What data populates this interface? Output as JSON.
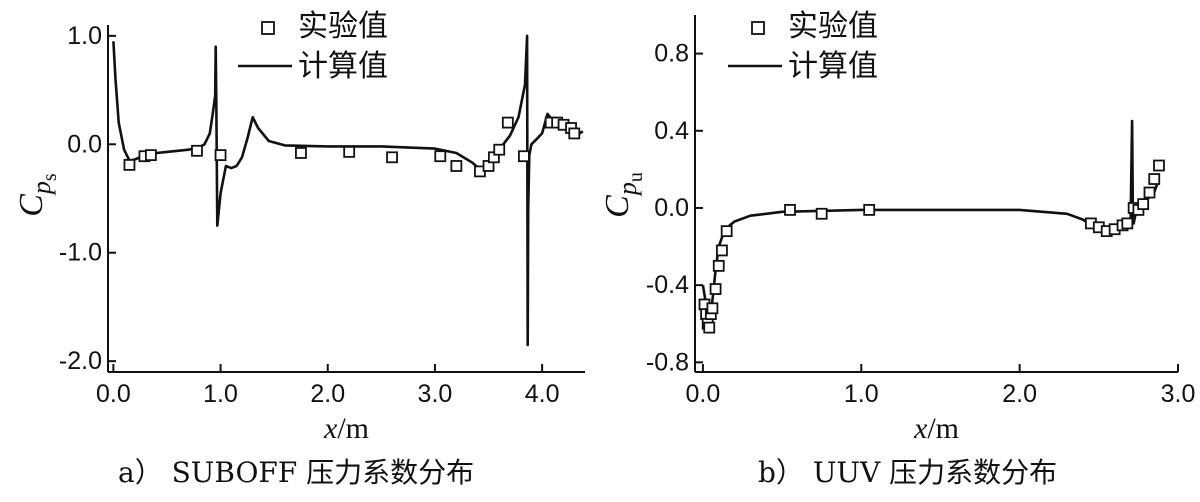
{
  "chart_data": [
    {
      "type": "line",
      "caption": "a） SUBOFF 压力系数分布",
      "ylabel": "Cps",
      "ylabel_symbol": "C",
      "ylabel_sub": "p",
      "ylabel_subsub": "s",
      "xlabel_var": "x",
      "xlabel_sep": "/",
      "xlabel_unit": "m",
      "xlim": [
        -0.05,
        4.4
      ],
      "ylim": [
        -2.1,
        1.1
      ],
      "xticks": [
        "0.0",
        "1.0",
        "2.0",
        "3.0",
        "4.0"
      ],
      "xtick_values": [
        0,
        1,
        2,
        3,
        4
      ],
      "yticks": [
        "1.0",
        "0.0",
        "-1.0",
        "-2.0"
      ],
      "ytick_values": [
        1.0,
        0.0,
        -1.0,
        -2.0
      ],
      "legend": {
        "position": "top-right",
        "markers_label": "实验值",
        "line_label": "计算值"
      },
      "series": [
        {
          "name": "计算值",
          "style": "line",
          "x": [
            0.0,
            0.02,
            0.05,
            0.1,
            0.15,
            0.2,
            0.3,
            0.4,
            0.5,
            0.6,
            0.7,
            0.8,
            0.85,
            0.9,
            0.93,
            0.95,
            0.955,
            0.96,
            0.97,
            1.0,
            1.05,
            1.1,
            1.15,
            1.2,
            1.25,
            1.3,
            1.35,
            1.45,
            1.6,
            2.0,
            2.5,
            3.0,
            3.2,
            3.35,
            3.42,
            3.5,
            3.6,
            3.7,
            3.78,
            3.84,
            3.86,
            3.865,
            3.87,
            3.88,
            3.9,
            3.95,
            4.0,
            4.05,
            4.1,
            4.2,
            4.3,
            4.35,
            4.38
          ],
          "y": [
            0.95,
            0.6,
            0.2,
            -0.05,
            -0.15,
            -0.14,
            -0.1,
            -0.08,
            -0.07,
            -0.06,
            -0.05,
            -0.03,
            0.0,
            0.1,
            0.3,
            0.45,
            0.9,
            0.4,
            -0.75,
            -0.45,
            -0.2,
            -0.22,
            -0.2,
            -0.12,
            0.05,
            0.25,
            0.15,
            0.03,
            -0.01,
            -0.02,
            -0.02,
            -0.04,
            -0.08,
            -0.17,
            -0.23,
            -0.18,
            -0.05,
            0.08,
            0.25,
            0.55,
            1.0,
            -1.85,
            -0.6,
            -0.1,
            0.0,
            0.05,
            0.1,
            0.28,
            0.22,
            0.2,
            0.15,
            0.1,
            0.12
          ]
        },
        {
          "name": "实验值",
          "style": "markers",
          "x": [
            0.15,
            0.29,
            0.35,
            0.78,
            1.0,
            1.75,
            2.2,
            2.6,
            3.05,
            3.2,
            3.42,
            3.5,
            3.55,
            3.6,
            3.68,
            3.83,
            4.08,
            4.14,
            4.2,
            4.27,
            4.3
          ],
          "y": [
            -0.19,
            -0.11,
            -0.1,
            -0.06,
            -0.1,
            -0.08,
            -0.07,
            -0.12,
            -0.11,
            -0.2,
            -0.25,
            -0.2,
            -0.12,
            -0.05,
            0.2,
            -0.11,
            0.2,
            0.2,
            0.18,
            0.15,
            0.1
          ]
        }
      ]
    },
    {
      "type": "line",
      "caption": "b） UUV 压力系数分布",
      "ylabel": "Cpu",
      "ylabel_symbol": "C",
      "ylabel_sub": "p",
      "ylabel_subsub": "u",
      "xlabel_var": "x",
      "xlabel_sep": "/",
      "xlabel_unit": "m",
      "xlim": [
        -0.05,
        3.0
      ],
      "ylim": [
        -0.85,
        1.0
      ],
      "xticks": [
        "0.0",
        "1.0",
        "2.0",
        "3.0"
      ],
      "xtick_values": [
        0,
        1,
        2,
        3
      ],
      "yticks": [
        "0.8",
        "0.4",
        "0.0",
        "-0.4",
        "-0.8"
      ],
      "ytick_values": [
        0.8,
        0.4,
        0.0,
        -0.4,
        -0.8
      ],
      "legend": {
        "position": "top-left",
        "markers_label": "实验值",
        "line_label": "计算值"
      },
      "series": [
        {
          "name": "计算值",
          "style": "line",
          "x": [
            0.0,
            0.01,
            0.02,
            0.03,
            0.04,
            0.05,
            0.06,
            0.08,
            0.1,
            0.13,
            0.17,
            0.2,
            0.3,
            0.5,
            1.0,
            1.5,
            2.0,
            2.3,
            2.4,
            2.45,
            2.5,
            2.55,
            2.6,
            2.65,
            2.68,
            2.7,
            2.71,
            2.715,
            2.72,
            2.73,
            2.76,
            2.8,
            2.85,
            2.88
          ],
          "y": [
            -0.4,
            -0.45,
            -0.5,
            -0.55,
            -0.6,
            -0.55,
            -0.48,
            -0.32,
            -0.2,
            -0.13,
            -0.09,
            -0.07,
            -0.04,
            -0.02,
            -0.01,
            -0.01,
            -0.01,
            -0.03,
            -0.06,
            -0.09,
            -0.11,
            -0.12,
            -0.1,
            -0.09,
            -0.1,
            -0.1,
            0.45,
            -0.05,
            -0.08,
            -0.04,
            0.0,
            0.04,
            0.08,
            0.15
          ]
        },
        {
          "name": "实验值",
          "style": "markers",
          "x": [
            0.01,
            0.02,
            0.03,
            0.04,
            0.05,
            0.06,
            0.08,
            0.1,
            0.12,
            0.15,
            0.55,
            0.75,
            1.05,
            2.45,
            2.5,
            2.55,
            2.6,
            2.65,
            2.68,
            2.72,
            2.75,
            2.78,
            2.82,
            2.85,
            2.88
          ],
          "y": [
            -0.5,
            -0.55,
            -0.6,
            -0.62,
            -0.55,
            -0.52,
            -0.42,
            -0.3,
            -0.22,
            -0.12,
            -0.01,
            -0.03,
            -0.01,
            -0.08,
            -0.1,
            -0.12,
            -0.11,
            -0.09,
            -0.08,
            0.0,
            -0.01,
            0.02,
            0.08,
            0.15,
            0.22
          ]
        }
      ]
    }
  ]
}
